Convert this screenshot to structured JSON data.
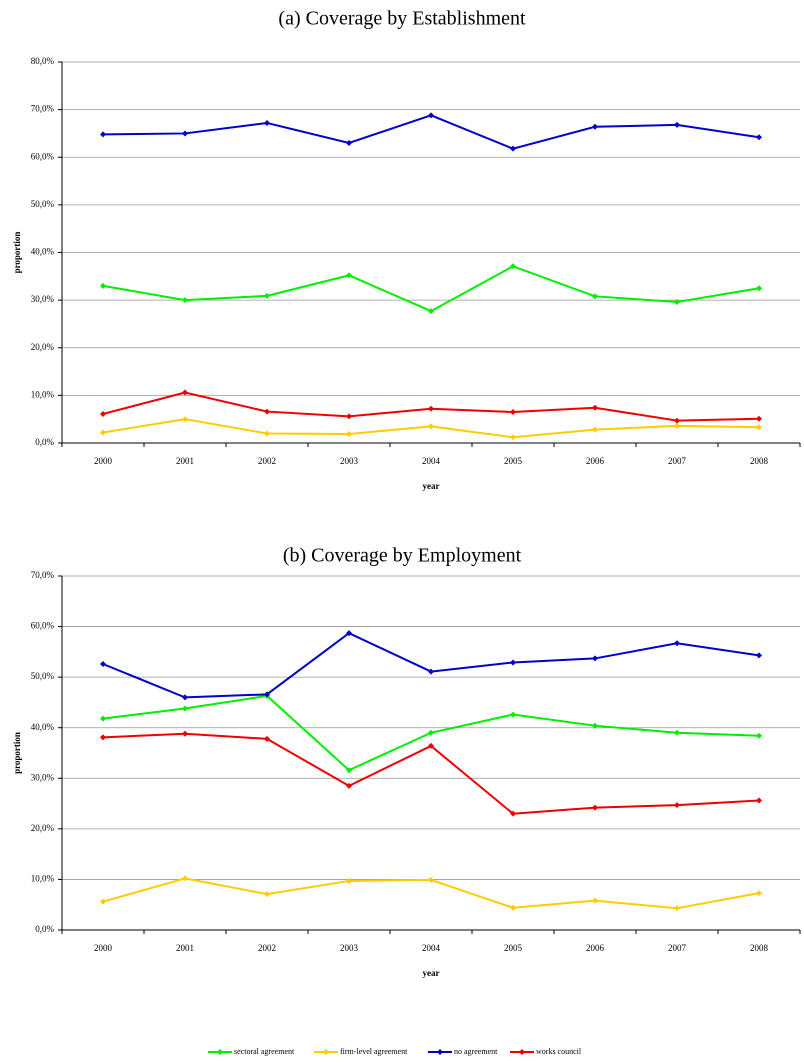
{
  "chart_data": [
    {
      "type": "line",
      "title": "(a) Coverage by Establishment",
      "x_label": "year",
      "y_label": "proportion",
      "categories": [
        "2000",
        "2001",
        "2002",
        "2003",
        "2004",
        "2005",
        "2006",
        "2007",
        "2008"
      ],
      "ylim": [
        0,
        80
      ],
      "yticks": [
        {
          "value": 0,
          "label": "0,0%"
        },
        {
          "value": 10,
          "label": "10,0%"
        },
        {
          "value": 20,
          "label": "20,0%"
        },
        {
          "value": 30,
          "label": "30,0%"
        },
        {
          "value": 40,
          "label": "40,0%"
        },
        {
          "value": 50,
          "label": "50,0%"
        },
        {
          "value": 60,
          "label": "60,0%"
        },
        {
          "value": 70,
          "label": "70,0%"
        },
        {
          "value": 80,
          "label": "80,0%"
        }
      ],
      "grid": true,
      "series": [
        {
          "color": "#00ee00",
          "values": [
            33,
            30,
            30.9,
            35.2,
            27.7,
            37.1,
            30.8,
            29.6,
            32.5
          ]
        },
        {
          "color": "#ffcc00",
          "values": [
            2.2,
            5,
            2,
            1.9,
            3.5,
            1.2,
            2.8,
            3.6,
            3.3
          ]
        },
        {
          "color": "#0000cc",
          "values": [
            64.8,
            65,
            67.2,
            63,
            68.8,
            61.8,
            66.4,
            66.8,
            64.2
          ]
        },
        {
          "color": "#ee0000",
          "values": [
            6.1,
            10.6,
            6.6,
            5.6,
            7.2,
            6.5,
            7.4,
            4.7,
            5.1
          ]
        }
      ]
    },
    {
      "type": "line",
      "title": "(b) Coverage by Employment",
      "x_label": "year",
      "y_label": "proportion",
      "categories": [
        "2000",
        "2001",
        "2002",
        "2003",
        "2004",
        "2005",
        "2006",
        "2007",
        "2008"
      ],
      "ylim": [
        0,
        70
      ],
      "yticks": [
        {
          "value": 0,
          "label": "0,0%"
        },
        {
          "value": 10,
          "label": "10,0%"
        },
        {
          "value": 20,
          "label": "20,0%"
        },
        {
          "value": 30,
          "label": "30,0%"
        },
        {
          "value": 40,
          "label": "40,0%"
        },
        {
          "value": 50,
          "label": "50,0%"
        },
        {
          "value": 60,
          "label": "60,0%"
        },
        {
          "value": 70,
          "label": "70,0%"
        }
      ],
      "grid": true,
      "legend": "bottom",
      "series": [
        {
          "name": "sectoral agreement",
          "color": "#00ee00",
          "values": [
            41.8,
            43.8,
            46.3,
            31.6,
            39,
            42.6,
            40.4,
            39,
            38.4
          ]
        },
        {
          "name": "firm-level agreement",
          "color": "#ffcc00",
          "values": [
            5.6,
            10.2,
            7.1,
            9.7,
            9.9,
            4.4,
            5.8,
            4.3,
            7.3
          ]
        },
        {
          "name": "no agreement",
          "color": "#0000cc",
          "values": [
            52.6,
            46,
            46.6,
            58.7,
            51.1,
            52.9,
            53.7,
            56.7,
            54.3
          ]
        },
        {
          "name": "works council",
          "color": "#ee0000",
          "values": [
            38.1,
            38.8,
            37.8,
            28.5,
            36.4,
            23,
            24.2,
            24.7,
            25.6
          ]
        }
      ]
    }
  ]
}
